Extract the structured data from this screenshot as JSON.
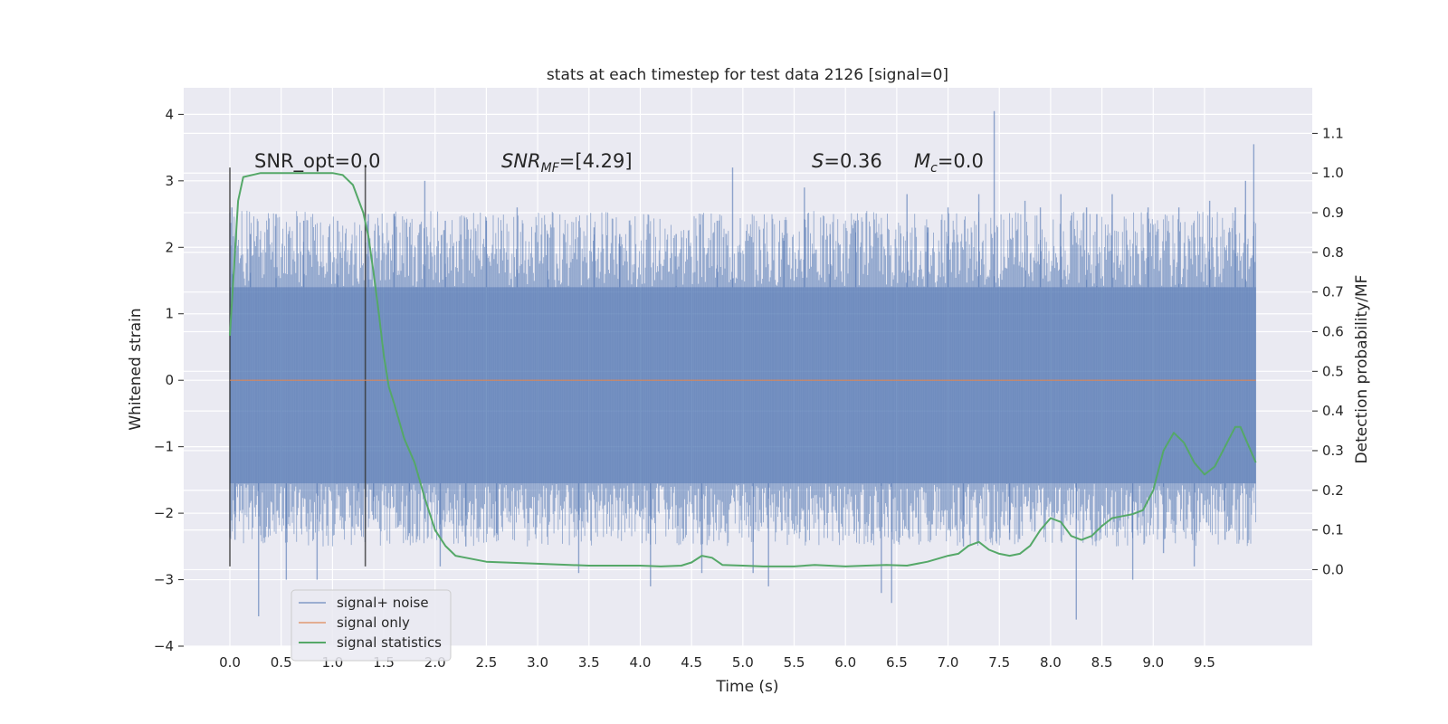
{
  "chart_data": {
    "type": "line",
    "title": "stats at each timestep for test data 2126 [signal=0]",
    "xlabel": "Time (s)",
    "ylabel": "Whitened strain",
    "y2label": "Detection probability/MF",
    "xlim": [
      -0.45,
      10.55
    ],
    "ylim": [
      -4.0,
      4.4
    ],
    "y2lim": [
      -0.193,
      1.215
    ],
    "grid": true,
    "legend_position": "lower-left",
    "x_ticks": [
      "0.0",
      "0.5",
      "1.0",
      "1.5",
      "2.0",
      "2.5",
      "3.0",
      "3.5",
      "4.0",
      "4.5",
      "5.0",
      "5.5",
      "6.0",
      "6.5",
      "7.0",
      "7.5",
      "8.0",
      "8.5",
      "9.0",
      "9.5"
    ],
    "y_ticks": [
      "4",
      "3",
      "2",
      "1",
      "0",
      "−1",
      "−2",
      "−3",
      "−4"
    ],
    "y2_ticks": [
      "1.1",
      "1.0",
      "0.9",
      "0.8",
      "0.7",
      "0.6",
      "0.5",
      "0.4",
      "0.3",
      "0.2",
      "0.1",
      "0.0"
    ],
    "annotations": {
      "snr_opt": "SNR_opt=0.0",
      "snr_mf_symbol": "SNR",
      "snr_mf_sub": "MF",
      "snr_mf_value": "=[4.29]",
      "s_symbol": "S",
      "s_value": "=0.36",
      "mc_symbol": "M",
      "mc_sub": "c",
      "mc_value": "=0.0"
    },
    "window_markers_x": [
      0.0,
      1.32
    ],
    "window_markers_yrange": [
      -2.8,
      3.2
    ],
    "series": [
      {
        "name": "signal+ noise",
        "color": "#4c72b0",
        "x_range": [
          0.0,
          10.0
        ],
        "band": [
          -1.55,
          1.4
        ],
        "spikes": [
          [
            0.02,
            2.6
          ],
          [
            0.05,
            -2.4
          ],
          [
            0.2,
            2.2
          ],
          [
            0.28,
            -3.55
          ],
          [
            0.45,
            2.5
          ],
          [
            0.55,
            -3.0
          ],
          [
            0.72,
            2.4
          ],
          [
            0.85,
            -3.0
          ],
          [
            1.05,
            2.4
          ],
          [
            1.25,
            -2.2
          ],
          [
            1.35,
            2.5
          ],
          [
            1.4,
            -2.1
          ],
          [
            1.6,
            2.5
          ],
          [
            1.75,
            -2.3
          ],
          [
            1.9,
            3.0
          ],
          [
            2.05,
            -2.8
          ],
          [
            2.1,
            2.4
          ],
          [
            2.3,
            -2.5
          ],
          [
            2.5,
            2.4
          ],
          [
            2.6,
            -2.3
          ],
          [
            2.8,
            2.6
          ],
          [
            3.1,
            2.2
          ],
          [
            3.4,
            -2.9
          ],
          [
            3.55,
            2.3
          ],
          [
            3.8,
            2.2
          ],
          [
            4.1,
            -3.1
          ],
          [
            4.35,
            2.2
          ],
          [
            4.6,
            -2.9
          ],
          [
            4.75,
            2.4
          ],
          [
            4.9,
            3.2
          ],
          [
            5.1,
            -2.9
          ],
          [
            5.25,
            -3.1
          ],
          [
            5.4,
            2.1
          ],
          [
            5.6,
            2.9
          ],
          [
            5.85,
            2.2
          ],
          [
            6.1,
            2.4
          ],
          [
            6.35,
            -3.2
          ],
          [
            6.45,
            -3.35
          ],
          [
            6.6,
            2.8
          ],
          [
            6.8,
            2.3
          ],
          [
            7.0,
            2.6
          ],
          [
            7.15,
            -2.5
          ],
          [
            7.3,
            2.8
          ],
          [
            7.45,
            4.05
          ],
          [
            7.6,
            -2.4
          ],
          [
            7.75,
            2.7
          ],
          [
            7.9,
            2.6
          ],
          [
            8.1,
            2.8
          ],
          [
            8.25,
            -3.6
          ],
          [
            8.35,
            2.6
          ],
          [
            8.45,
            2.5
          ],
          [
            8.6,
            2.8
          ],
          [
            8.8,
            -3.0
          ],
          [
            8.95,
            2.6
          ],
          [
            9.1,
            -2.6
          ],
          [
            9.25,
            2.6
          ],
          [
            9.4,
            -2.8
          ],
          [
            9.55,
            2.7
          ],
          [
            9.7,
            -2.4
          ],
          [
            9.8,
            2.6
          ],
          [
            9.9,
            3.0
          ],
          [
            9.98,
            3.55
          ]
        ]
      },
      {
        "name": "signal only",
        "color": "#dd8452",
        "x": [
          0.0,
          10.0
        ],
        "values": [
          0.0,
          0.0
        ]
      },
      {
        "name": "signal statistics",
        "color": "#55a868",
        "x": [
          0.0,
          0.08,
          0.13,
          0.3,
          0.5,
          0.75,
          1.0,
          1.1,
          1.2,
          1.3,
          1.35,
          1.4,
          1.45,
          1.5,
          1.55,
          1.6,
          1.7,
          1.8,
          1.9,
          2.0,
          2.1,
          2.2,
          2.5,
          3.0,
          3.5,
          4.0,
          4.2,
          4.4,
          4.5,
          4.6,
          4.7,
          4.8,
          5.0,
          5.2,
          5.5,
          5.7,
          6.0,
          6.2,
          6.4,
          6.6,
          6.8,
          7.0,
          7.1,
          7.2,
          7.3,
          7.4,
          7.5,
          7.6,
          7.7,
          7.8,
          7.9,
          8.0,
          8.1,
          8.2,
          8.3,
          8.4,
          8.5,
          8.6,
          8.7,
          8.8,
          8.9,
          9.0,
          9.1,
          9.2,
          9.3,
          9.4,
          9.5,
          9.6,
          9.7,
          9.8,
          9.85,
          9.9,
          9.95,
          10.0
        ],
        "values": [
          0.59,
          0.93,
          0.99,
          1.0,
          1.0,
          1.0,
          1.0,
          0.995,
          0.97,
          0.9,
          0.84,
          0.75,
          0.65,
          0.54,
          0.46,
          0.42,
          0.33,
          0.27,
          0.18,
          0.1,
          0.06,
          0.035,
          0.02,
          0.015,
          0.01,
          0.01,
          0.008,
          0.01,
          0.018,
          0.035,
          0.03,
          0.012,
          0.01,
          0.008,
          0.008,
          0.012,
          0.008,
          0.01,
          0.012,
          0.01,
          0.02,
          0.035,
          0.04,
          0.06,
          0.07,
          0.05,
          0.04,
          0.035,
          0.04,
          0.06,
          0.1,
          0.13,
          0.12,
          0.085,
          0.075,
          0.085,
          0.11,
          0.13,
          0.135,
          0.14,
          0.15,
          0.2,
          0.3,
          0.345,
          0.32,
          0.27,
          0.24,
          0.26,
          0.31,
          0.36,
          0.36,
          0.33,
          0.3,
          0.27
        ]
      }
    ]
  }
}
